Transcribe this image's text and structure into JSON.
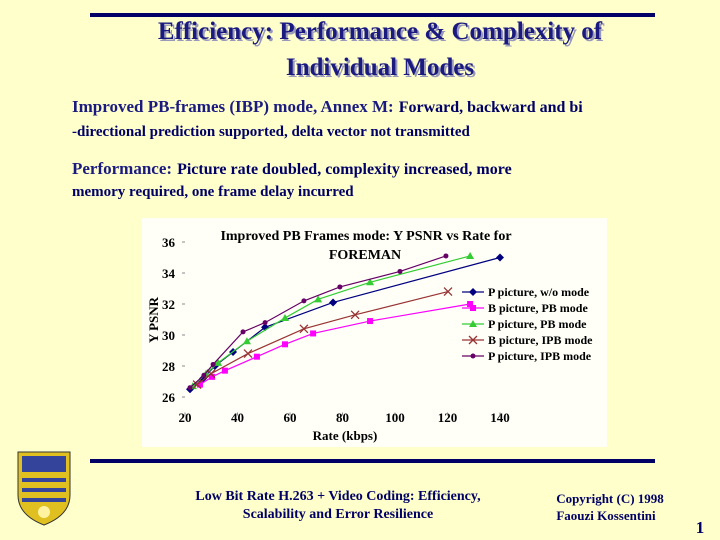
{
  "slide": {
    "title": [
      "Efficiency: Performance & Complexity of",
      "Individual Modes"
    ],
    "points": [
      {
        "lead": "Improved PB-frames (IBP) mode, Annex M:",
        "lines": [
          "Forward, backward and bi",
          "-directional prediction supported, delta vector not transmitted"
        ]
      },
      {
        "lead": "Performance:",
        "lines": [
          "Picture rate doubled, complexity increased, more",
          "memory required, one frame delay incurred"
        ]
      }
    ],
    "footer": [
      "Low Bit Rate H.263 + Video Coding: Efficiency,",
      "Scalability and Error Resilience"
    ],
    "copyright": [
      "Copyright (C) 1998",
      "Faouzi Kossentini"
    ],
    "page_number": "1"
  },
  "chart_data": {
    "type": "line",
    "title": [
      "Improved PB Frames mode: Y PSNR vs Rate for",
      "FOREMAN"
    ],
    "x_label": "Rate (kbps)",
    "y_label": "Y PSNR",
    "xlim": [
      20,
      140
    ],
    "ylim": [
      25,
      37
    ],
    "xticks": [
      20,
      40,
      60,
      80,
      100,
      120,
      140
    ],
    "yticks": [
      26,
      28,
      30,
      32,
      34,
      36
    ],
    "series": [
      {
        "name": "P picture, w/o mode",
        "color": "#000080",
        "marker": "diamond",
        "x": [
          21.9,
          26.9,
          31.4,
          38.3,
          50.5,
          76.4,
          140
        ],
        "values": [
          26.5,
          27.2,
          28.0,
          28.9,
          30.5,
          32.1,
          35.0
        ]
      },
      {
        "name": "B picture, PB mode",
        "color": "#ff00ff",
        "marker": "square",
        "x": [
          25.7,
          30.3,
          35.2,
          47.4,
          58.1,
          68.8,
          90.5,
          128.6
        ],
        "values": [
          26.8,
          27.3,
          27.7,
          28.6,
          29.4,
          30.1,
          30.9,
          32.0
        ]
      },
      {
        "name": "P picture, PB mode",
        "color": "#33cc33",
        "marker": "triangle",
        "x": [
          23,
          28,
          32.6,
          43.6,
          58.1,
          70.7,
          90.5,
          128.6
        ],
        "values": [
          26.7,
          27.5,
          28.2,
          29.6,
          31.1,
          32.3,
          33.4,
          35.1
        ]
      },
      {
        "name": "B picture, IPB mode",
        "color": "#993333",
        "marker": "x",
        "x": [
          24.6,
          29.9,
          44,
          65.3,
          84.8,
          120.2
        ],
        "values": [
          26.8,
          27.5,
          28.8,
          30.4,
          31.3,
          32.8
        ]
      },
      {
        "name": "P picture, IPB mode",
        "color": "#660066",
        "marker": "circle",
        "x": [
          21.9,
          27.2,
          30.7,
          42.1,
          50.5,
          65.3,
          79,
          101.9,
          119.4
        ],
        "values": [
          26.6,
          27.4,
          28.1,
          30.2,
          30.8,
          32.2,
          33.1,
          34.1,
          35.1
        ]
      }
    ]
  }
}
